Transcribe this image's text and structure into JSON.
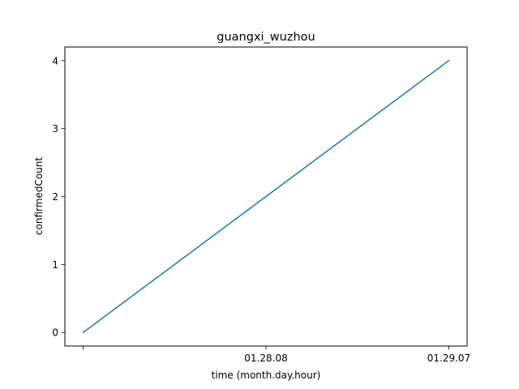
{
  "chart_data": {
    "type": "line",
    "title": "guangxi_wuzhou",
    "xlabel": "time (month.day.hour)",
    "ylabel": "confirmedCount",
    "x_ticks": [
      "",
      "01.28.08",
      "01.29.07"
    ],
    "x": [
      0,
      1,
      2
    ],
    "xlim": [
      -0.1,
      2.1
    ],
    "series": [
      {
        "values": [
          0,
          2,
          4
        ],
        "color": "#1f77b4"
      }
    ],
    "ylim": [
      -0.2,
      4.2
    ],
    "y_ticks": [
      0,
      1,
      2,
      3,
      4
    ],
    "grid": false,
    "legend": "none"
  }
}
